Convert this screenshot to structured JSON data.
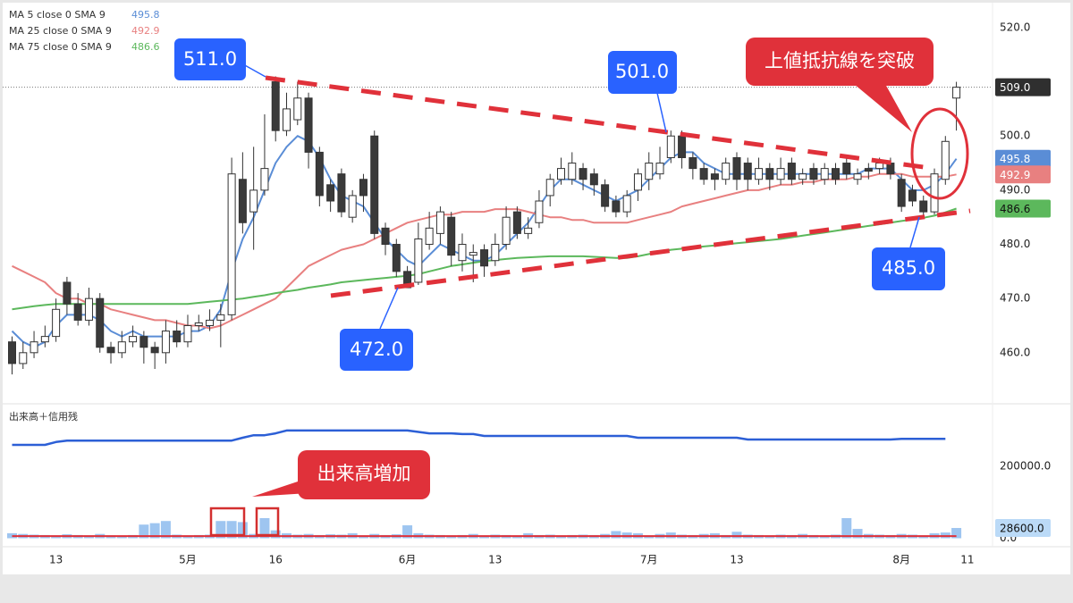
{
  "chart_data": {
    "type": "candlestick",
    "categories": [
      null,
      null,
      null,
      null,
      "13",
      null,
      null,
      null,
      null,
      null,
      null,
      null,
      null,
      null,
      null,
      null,
      "5月",
      null,
      null,
      null,
      null,
      null,
      null,
      null,
      "16",
      null,
      null,
      null,
      null,
      null,
      null,
      null,
      null,
      null,
      null,
      null,
      "6月",
      null,
      null,
      null,
      null,
      null,
      null,
      null,
      "13",
      null,
      null,
      null,
      null,
      null,
      null,
      null,
      null,
      null,
      null,
      null,
      null,
      null,
      "7月",
      null,
      null,
      null,
      null,
      null,
      null,
      null,
      "13",
      null,
      null,
      null,
      null,
      null,
      null,
      null,
      null,
      null,
      null,
      null,
      null,
      null,
      null,
      "8月",
      null,
      null,
      null,
      null,
      null,
      "11"
    ],
    "open": [
      462,
      458,
      460,
      462,
      463,
      473,
      469,
      466,
      470,
      461,
      460,
      462,
      463,
      461,
      460,
      464,
      462,
      465,
      465,
      466,
      467,
      492,
      486,
      490,
      510,
      501,
      503,
      507,
      497,
      491,
      493,
      485,
      492,
      500,
      483,
      480,
      475,
      473,
      480,
      482,
      485,
      477,
      478,
      479,
      477,
      480,
      486,
      482,
      484,
      489,
      492,
      492,
      494,
      493,
      491,
      488,
      486,
      490,
      492,
      493,
      496,
      500,
      496,
      494,
      493,
      492,
      496,
      495,
      492,
      494,
      492,
      495,
      492,
      494,
      492,
      494,
      495,
      492,
      494,
      494,
      495,
      492,
      490,
      488,
      486,
      492,
      507,
      null
    ],
    "high": [
      463,
      462,
      464,
      465,
      470,
      474,
      471,
      472,
      471,
      462,
      464,
      465,
      464,
      462,
      466,
      466,
      467,
      467,
      468,
      469,
      496,
      497,
      498,
      504,
      511,
      508,
      510,
      508,
      498,
      492,
      494,
      490,
      493,
      501,
      484,
      481,
      476,
      484,
      486,
      487,
      486,
      482,
      480,
      480,
      482,
      487,
      487,
      485,
      490,
      493,
      496,
      497,
      495,
      494,
      492,
      489,
      490,
      494,
      497,
      498,
      501,
      501,
      497,
      495,
      494,
      496,
      497,
      496,
      496,
      495,
      496,
      496,
      494,
      495,
      495,
      495,
      496,
      494,
      495,
      496,
      496,
      493,
      491,
      489,
      494,
      500,
      510,
      null
    ],
    "low": [
      456,
      457,
      459,
      461,
      462,
      467,
      465,
      465,
      460,
      458,
      459,
      461,
      458,
      457,
      458,
      461,
      461,
      464,
      464,
      461,
      466,
      482,
      479,
      489,
      499,
      500,
      502,
      494,
      487,
      486,
      485,
      484,
      486,
      481,
      478,
      474,
      472,
      472.5,
      479,
      480,
      476,
      475,
      473,
      474,
      476,
      479,
      481,
      481,
      483,
      487,
      491,
      491,
      490,
      489,
      486,
      485,
      485,
      488,
      490,
      492,
      495,
      494,
      492,
      491,
      490,
      491,
      490,
      490,
      491,
      490,
      491,
      491,
      491,
      491,
      491,
      491,
      492,
      491,
      492,
      493,
      492,
      486,
      487,
      485,
      485.5,
      491,
      501,
      null
    ],
    "close": [
      458,
      460,
      462,
      463,
      468,
      469,
      466,
      470,
      461,
      460,
      462,
      463,
      461,
      460,
      464,
      462,
      465,
      465.5,
      466,
      467,
      493,
      484,
      490,
      494,
      501,
      505,
      507,
      497,
      489,
      488,
      486,
      489,
      489,
      482,
      480,
      475,
      472,
      481,
      483,
      486,
      478,
      480,
      478.5,
      476,
      480,
      485,
      482,
      483,
      488,
      492,
      494,
      495,
      492,
      491,
      487,
      486,
      489,
      493,
      495,
      495,
      500,
      496,
      494,
      492,
      492,
      495,
      492,
      492,
      494,
      492,
      494,
      492,
      493,
      492,
      494,
      492,
      493,
      493,
      493.5,
      495,
      493,
      487,
      488,
      486,
      493,
      499,
      509,
      null
    ],
    "up_color": "#ffffff",
    "down_color": "#3a3a3a",
    "wick_color": "#333333",
    "ylim": [
      450.9,
      525.1
    ],
    "yticks": [
      {
        "value": 460,
        "label": "460.0"
      },
      {
        "value": 470,
        "label": "470.0"
      },
      {
        "value": 480,
        "label": "480.0"
      },
      {
        "value": 490,
        "label": "490.0"
      },
      {
        "value": 500,
        "label": "500.0"
      },
      {
        "value": 520,
        "label": "520.0"
      }
    ],
    "price_marker": {
      "value": 509,
      "label": "509.0"
    },
    "series": [
      {
        "name": "MA 5 close 0 SMA 9",
        "color": "#5a8dd6",
        "values": [
          464,
          462,
          461,
          462,
          465,
          467,
          467,
          467,
          466,
          464,
          463,
          464,
          463,
          463,
          463,
          463,
          464,
          464,
          465,
          468,
          475,
          481,
          485,
          490,
          495,
          498,
          500,
          499,
          496,
          492,
          489,
          488,
          487,
          484,
          481,
          479,
          477,
          476,
          478,
          480,
          479,
          478,
          477,
          477,
          478,
          480,
          482,
          484,
          487,
          490,
          492,
          492,
          491,
          490,
          489,
          488,
          489,
          490,
          492,
          494,
          496,
          497,
          497,
          495,
          494,
          493,
          493,
          493,
          493,
          493,
          493,
          493,
          493,
          493,
          493,
          493,
          493,
          493,
          494,
          494,
          494,
          492,
          490,
          490,
          491,
          493,
          495.8,
          null
        ]
      },
      {
        "name": "MA 25 close 0 SMA 9",
        "color": "#e88080",
        "values": [
          476,
          475,
          474,
          473,
          471,
          470,
          470,
          469,
          469,
          468,
          467.5,
          467,
          466.5,
          466,
          466,
          465.5,
          465,
          465,
          464.5,
          465,
          466,
          467,
          468,
          469,
          470,
          472,
          474,
          476,
          477,
          478,
          479,
          479.5,
          480,
          481,
          482,
          483,
          484,
          484.5,
          485,
          485.5,
          485.5,
          486,
          486,
          486,
          486.5,
          486.5,
          486.5,
          486,
          485.5,
          485,
          485,
          484.5,
          484.5,
          484,
          484,
          484,
          484,
          484.5,
          485,
          485.5,
          486,
          487,
          487.5,
          488,
          488.5,
          489,
          489.5,
          490,
          490,
          490.5,
          491,
          491,
          491.5,
          491.5,
          492,
          492,
          492,
          492.5,
          492.5,
          493,
          493,
          493,
          492.5,
          492.5,
          492.5,
          492.5,
          492.9,
          null
        ]
      },
      {
        "name": "MA 75 close 0 SMA 9",
        "color": "#5cb85c",
        "values": [
          468,
          468.3,
          468.6,
          468.8,
          469,
          469,
          469,
          469,
          469,
          469,
          469,
          469,
          469,
          469,
          469,
          469,
          469,
          469.2,
          469.4,
          469.6,
          469.8,
          470,
          470.3,
          470.6,
          471,
          471.3,
          471.6,
          472,
          472.3,
          472.6,
          473,
          473.2,
          473.4,
          473.6,
          473.8,
          474,
          474.2,
          474.5,
          475,
          475.5,
          476,
          476.3,
          476.6,
          476.9,
          477.1,
          477.3,
          477.5,
          477.6,
          477.7,
          477.8,
          477.8,
          477.8,
          477.8,
          477.7,
          477.6,
          477.5,
          477.5,
          477.8,
          478.2,
          478.6,
          479,
          479.2,
          479.4,
          479.6,
          479.8,
          480,
          480.2,
          480.4,
          480.6,
          480.8,
          481,
          481.3,
          481.6,
          481.9,
          482.2,
          482.5,
          482.8,
          483.1,
          483.4,
          483.7,
          484,
          484.3,
          484.6,
          484.9,
          485.3,
          485.9,
          486.6,
          null
        ]
      }
    ],
    "volume": {
      "title": "出来高＋信用残",
      "color": "#9ec5f0",
      "values": [
        14000,
        12000,
        10000,
        9000,
        8000,
        11000,
        9000,
        8000,
        12000,
        8000,
        7000,
        9000,
        38000,
        42000,
        48000,
        10000,
        8000,
        9000,
        10000,
        48000,
        48000,
        45000,
        12000,
        56000,
        22000,
        14000,
        10000,
        12000,
        9000,
        11000,
        10000,
        14000,
        8000,
        12000,
        9000,
        11000,
        36000,
        14000,
        10000,
        9000,
        8000,
        9000,
        12000,
        8000,
        10000,
        9000,
        8000,
        14000,
        9000,
        10000,
        8000,
        9000,
        10000,
        9000,
        12000,
        20000,
        16000,
        14000,
        8000,
        12000,
        16000,
        10000,
        9000,
        12000,
        14000,
        9000,
        18000,
        10000,
        9000,
        8000,
        10000,
        9000,
        12000,
        9000,
        8000,
        10000,
        56000,
        26000,
        12000,
        10000,
        9000,
        12000,
        10000,
        8000,
        14000,
        16000,
        28600,
        null
      ],
      "line": {
        "color": "#e0313a",
        "values": [
          6000,
          6000,
          6000,
          6000,
          6000,
          6000,
          6000,
          6000,
          6000,
          6000,
          6000,
          6000,
          6000,
          6000,
          6000,
          6000,
          6000,
          6000,
          6000,
          6000,
          6000,
          6000,
          6000,
          6000,
          6000,
          6000,
          6000,
          6000,
          6000,
          6000,
          6000,
          6000,
          6000,
          6000,
          6000,
          6000,
          6000,
          6000,
          6000,
          6000,
          6000,
          6000,
          6000,
          6000,
          6000,
          6000,
          6000,
          6000,
          6000,
          6000,
          6000,
          6000,
          6000,
          6000,
          6000,
          6000,
          6000,
          6000,
          6000,
          6000,
          6000,
          6000,
          6000,
          6000,
          6000,
          6000,
          6000,
          6000,
          6000,
          6000,
          6000,
          6000,
          6000,
          6000,
          6000,
          6000,
          6000,
          6000,
          6000,
          6000,
          6000,
          6000,
          6000,
          6000,
          6000,
          6000,
          6000,
          null
        ]
      },
      "credit": {
        "color": "#2c5fd6",
        "values": [
          260000,
          260000,
          260000,
          260000,
          268000,
          272000,
          272000,
          272000,
          272000,
          272000,
          272000,
          272000,
          272000,
          272000,
          272000,
          272000,
          272000,
          272000,
          272000,
          272000,
          272000,
          280000,
          287000,
          287000,
          292000,
          300000,
          300000,
          300000,
          300000,
          300000,
          300000,
          300000,
          300000,
          300000,
          300000,
          300000,
          300000,
          296000,
          292000,
          292000,
          292000,
          290000,
          290000,
          285000,
          285000,
          285000,
          285000,
          285000,
          285000,
          285000,
          285000,
          285000,
          285000,
          285000,
          285000,
          285000,
          285000,
          280000,
          280000,
          280000,
          280000,
          280000,
          280000,
          280000,
          280000,
          280000,
          280000,
          275000,
          275000,
          275000,
          275000,
          275000,
          275000,
          275000,
          275000,
          275000,
          275000,
          275000,
          275000,
          275000,
          275000,
          277000,
          277000,
          277000,
          277000,
          277000,
          null,
          null
        ]
      },
      "ylim": [
        -23600,
        367000
      ],
      "yticks": [
        {
          "value": 0,
          "label": "0.0"
        },
        {
          "value": 200000,
          "label": "200000.0"
        }
      ],
      "marker": {
        "value": 28600,
        "label": "28600.0"
      }
    },
    "annotations": [
      "511.0",
      "501.0",
      "472.0",
      "485.0",
      "上値抵抗線を突破",
      "出来高増加"
    ]
  }
}
